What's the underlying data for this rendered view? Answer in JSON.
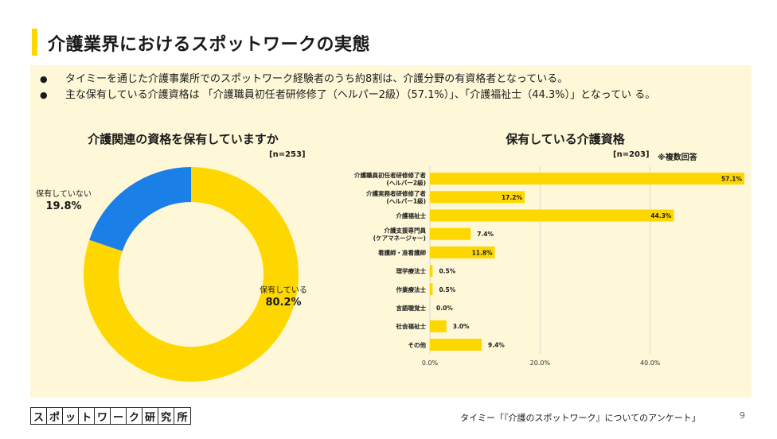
{
  "title": "介護業界におけるスポットワークの実態",
  "bullets": [
    "タイミーを通じた介護事業所でのスポットワーク経験者のうち約8割は、介護分野の有資格者となっている。",
    "主な保有している介護資格は 「介護職員初任者研修修了（ヘルパー2級）（57.1%）」、「介護福祉士（44.3%）」となってい る。"
  ],
  "colors": {
    "accent": "#ffd700",
    "blue": "#1a7fe6",
    "panel": "#fff8d8"
  },
  "chart_data": [
    {
      "type": "pie",
      "title": "介護関連の資格を保有していますか",
      "n_label": "[n=253]",
      "categories": [
        "保有している",
        "保有していない"
      ],
      "values": [
        80.2,
        19.8
      ],
      "value_labels": [
        "80.2%",
        "19.8%"
      ],
      "colors": [
        "#ffd700",
        "#1a7fe6"
      ]
    },
    {
      "type": "bar",
      "orientation": "horizontal",
      "title": "保有している介護資格",
      "n_label": "[n=203]",
      "note": "※複数回答",
      "categories": [
        [
          "介護職員初任者研修修了者",
          "(ヘルパー2級)"
        ],
        [
          "介護実務者研修修了者",
          "(ヘルパー1級)"
        ],
        [
          "介護福祉士"
        ],
        [
          "介護支援専門員",
          "(ケアマネージャー)"
        ],
        [
          "看護師・准看護師"
        ],
        [
          "理学療法士"
        ],
        [
          "作業療法士"
        ],
        [
          "言語聴覚士"
        ],
        [
          "社会福祉士"
        ],
        [
          "その他"
        ]
      ],
      "values": [
        57.1,
        17.2,
        44.3,
        7.4,
        11.8,
        0.5,
        0.5,
        0.0,
        3.0,
        9.4
      ],
      "value_labels": [
        "57.1%",
        "17.2%",
        "44.3%",
        "7.4%",
        "11.8%",
        "0.5%",
        "0.5%",
        "0.0%",
        "3.0%",
        "9.4%"
      ],
      "xlim": [
        0,
        57.1
      ],
      "xticks": [
        0,
        20,
        40
      ],
      "xtick_labels": [
        "0.0%",
        "20.0%",
        "40.0%"
      ],
      "grid": true
    }
  ],
  "footer": {
    "logo_chars": [
      "ス",
      "ポ",
      "ッ",
      "ト",
      "ワ",
      "ー",
      "ク",
      "研",
      "究",
      "所"
    ],
    "source": "タイミー「『介護のスポットワーク』についてのアンケート」",
    "page": "9"
  }
}
